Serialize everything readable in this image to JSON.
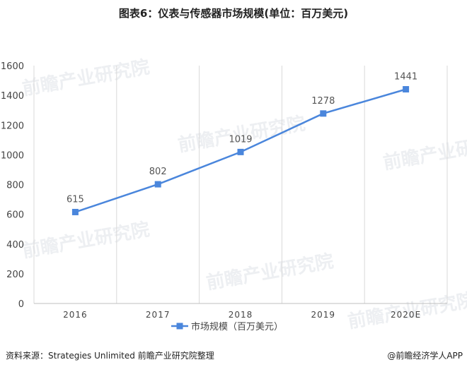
{
  "title": "图表6：仪表与传感器市场规模(单位：百万美元)",
  "watermark": "前瞻产业研究院",
  "footer": {
    "source": "资料来源：Strategies Unlimited 前瞻产业研究院整理",
    "brand": "@前瞻经济学人APP"
  },
  "chart_data": {
    "type": "line",
    "title": "图表6：仪表与传感器市场规模(单位：百万美元)",
    "categories": [
      "2016",
      "2017",
      "2018",
      "2019",
      "2020E"
    ],
    "series": [
      {
        "name": "市场规模（百万美元）",
        "values": [
          615,
          802,
          1019,
          1278,
          1441
        ],
        "color": "#4a86dc"
      }
    ],
    "ylim": [
      0,
      1600
    ],
    "yticks": [
      0,
      200,
      400,
      600,
      800,
      1000,
      1200,
      1400,
      1600
    ],
    "grid": "vertical",
    "legend": "bottom-center",
    "data_labels": true
  }
}
